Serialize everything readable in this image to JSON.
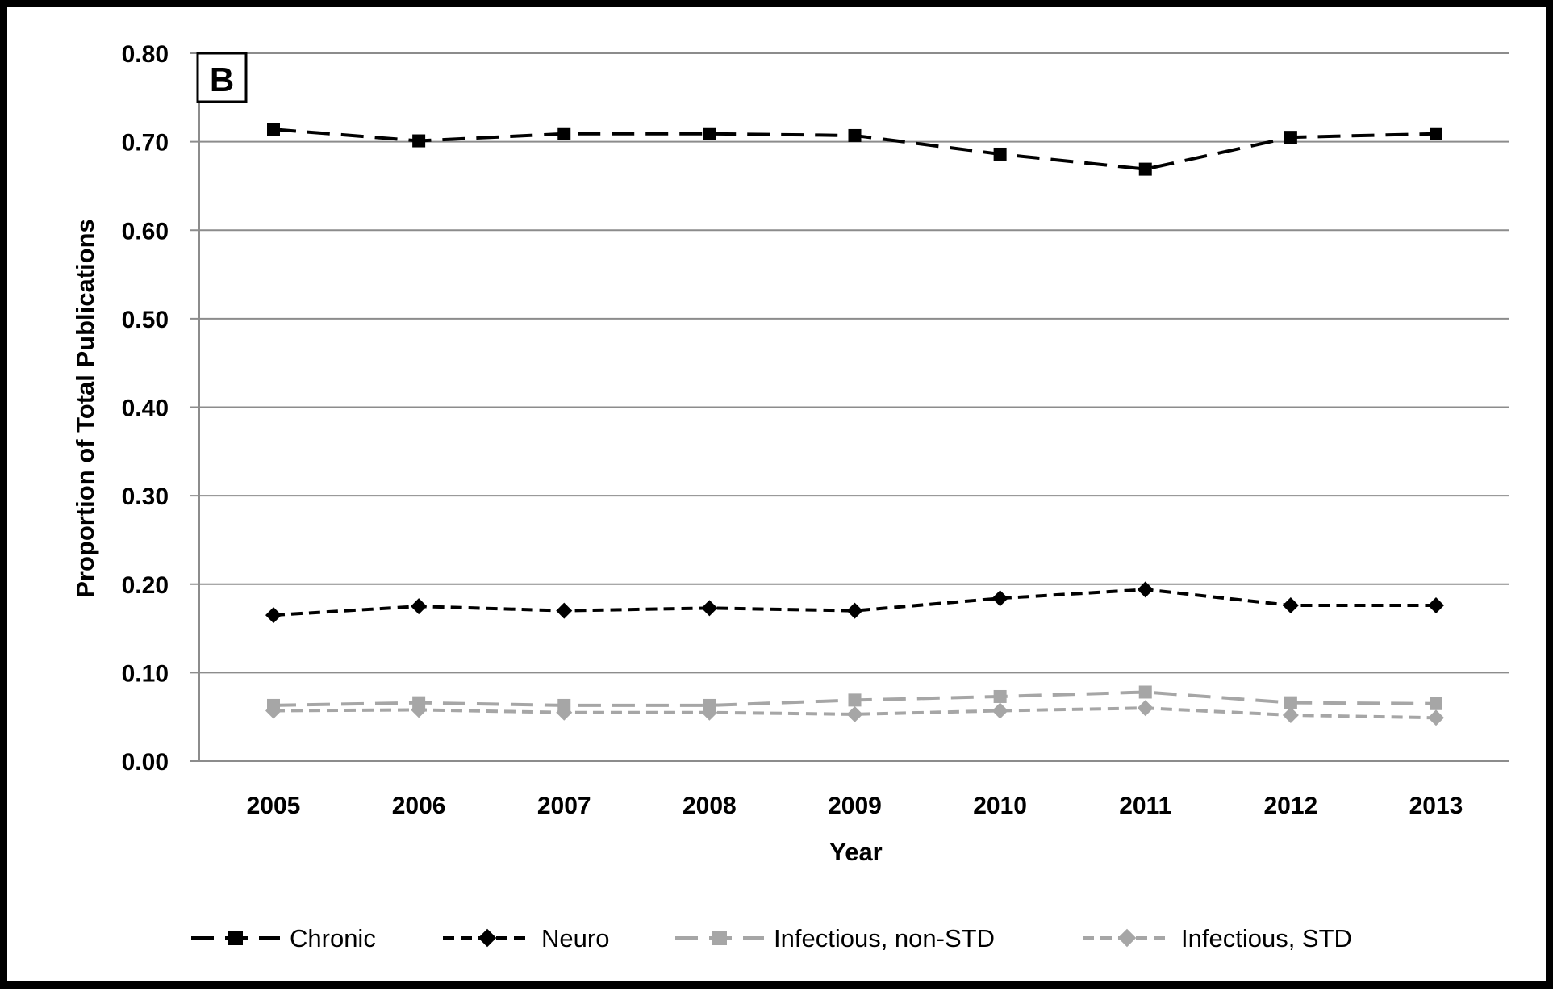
{
  "chart_data": {
    "type": "line",
    "panel_label": "B",
    "xlabel": "Year",
    "ylabel": "Proportion of Total Publications",
    "x": [
      "2005",
      "2006",
      "2007",
      "2008",
      "2009",
      "2010",
      "2011",
      "2012",
      "2013"
    ],
    "ylim": [
      0,
      0.8
    ],
    "yticks": [
      "0.00",
      "0.10",
      "0.20",
      "0.30",
      "0.40",
      "0.50",
      "0.60",
      "0.70",
      "0.80"
    ],
    "grid": true,
    "legend_position": "bottom",
    "series": [
      {
        "name": "Chronic",
        "color": "#000000",
        "marker": "square",
        "dash": "long",
        "values": [
          0.714,
          0.701,
          0.709,
          0.709,
          0.707,
          0.686,
          0.669,
          0.705,
          0.709
        ]
      },
      {
        "name": "Neuro",
        "color": "#000000",
        "marker": "diamond",
        "dash": "short",
        "values": [
          0.165,
          0.175,
          0.17,
          0.173,
          0.17,
          0.184,
          0.194,
          0.176,
          0.176
        ]
      },
      {
        "name": "Infectious, non-STD",
        "color": "#a6a6a6",
        "marker": "square",
        "dash": "long",
        "values": [
          0.063,
          0.066,
          0.063,
          0.063,
          0.069,
          0.073,
          0.078,
          0.066,
          0.065
        ]
      },
      {
        "name": "Infectious, STD",
        "color": "#a6a6a6",
        "marker": "diamond",
        "dash": "short",
        "values": [
          0.057,
          0.058,
          0.055,
          0.055,
          0.053,
          0.057,
          0.06,
          0.052,
          0.049
        ]
      }
    ]
  }
}
